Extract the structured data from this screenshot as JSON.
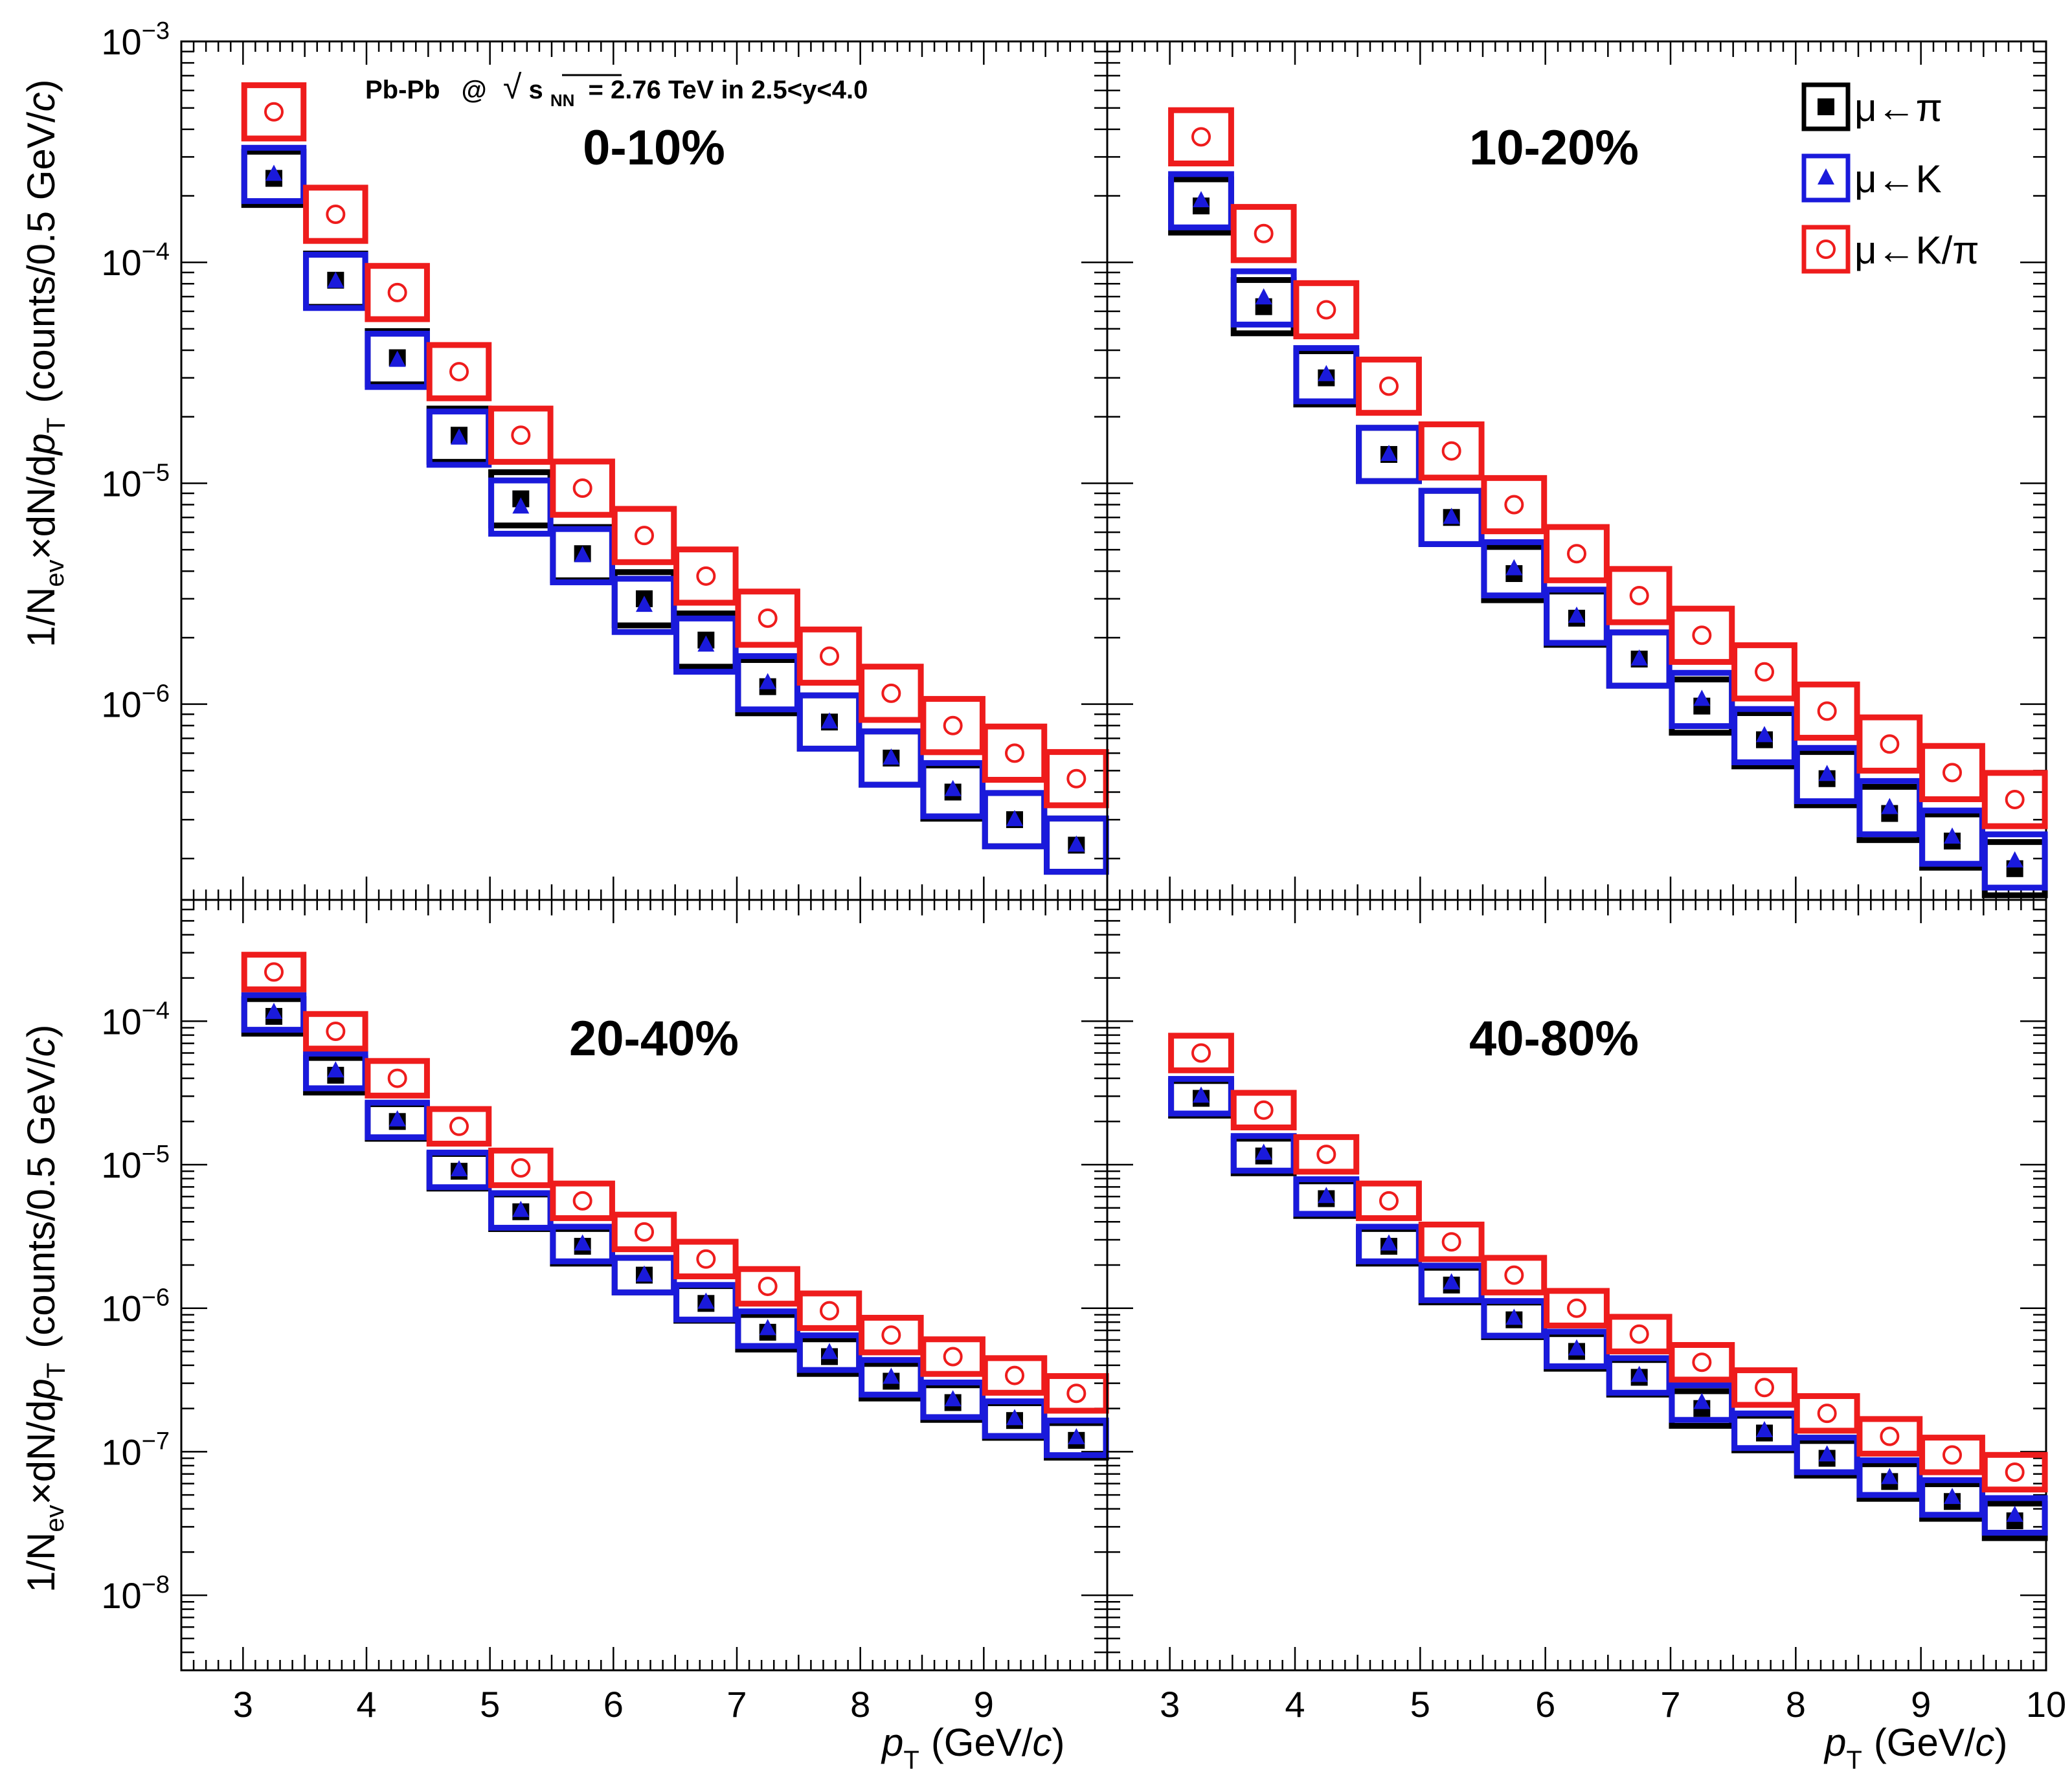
{
  "figure": {
    "annotation": {
      "system": "Pb-Pb",
      "at": "@",
      "sqrt": "√",
      "energy_var": "s",
      "energy_sub": "NN",
      "rest": "= 2.76 TeV in 2.5<y<4.0"
    },
    "x_axis_title": {
      "p": "p",
      "sub": "T",
      "unit_open": "(GeV/",
      "c": "c",
      "unit_close": ")"
    },
    "y_axis_title": {
      "a": "1/N",
      "sub_ev": "ev",
      "b": "×dN/d",
      "p": "p",
      "sub_t": "T",
      "c": "(counts/0.5 GeV/",
      "cit": "c",
      "d": ")"
    },
    "colors": {
      "pi": "#000000",
      "k": "#1a1adb",
      "kpi": "#ee1c1c"
    }
  },
  "legend": [
    {
      "label": "μ←π",
      "series": "pi",
      "marker": "square"
    },
    {
      "label": "μ←K",
      "series": "k",
      "marker": "triangle"
    },
    {
      "label": "μ←K/π",
      "series": "kpi",
      "marker": "open-circle"
    }
  ],
  "chart_data": [
    {
      "type": "scatter",
      "panel": "top-left",
      "title": "0-10%",
      "xlabel": "pT (GeV/c)",
      "ylabel": "1/Nev×dN/dpT (counts/0.5 GeV/c)",
      "yscale": "log",
      "xlim": [
        2.5,
        10
      ],
      "ylim": [
        1.3e-07,
        0.001
      ],
      "x": [
        3.25,
        3.75,
        4.25,
        4.75,
        5.25,
        5.75,
        6.25,
        6.75,
        7.25,
        7.75,
        8.25,
        8.75,
        9.25,
        9.75
      ],
      "series": [
        {
          "name": "μ←π",
          "values": [
            0.00024,
            8.3e-05,
            3.7e-05,
            1.65e-05,
            8.5e-06,
            4.8e-06,
            3e-06,
            1.95e-06,
            1.2e-06,
            8.3e-07,
            5.7e-07,
            4e-07,
            3e-07,
            2.3e-07
          ]
        },
        {
          "name": "μ←K",
          "values": [
            0.00025,
            8.2e-05,
            3.6e-05,
            1.6e-05,
            7.8e-06,
            4.7e-06,
            2.8e-06,
            1.85e-06,
            1.25e-06,
            8.3e-07,
            5.7e-07,
            4.1e-07,
            3e-07,
            2.3e-07
          ]
        },
        {
          "name": "μ←K/π",
          "values": [
            0.00048,
            0.000165,
            7.3e-05,
            3.2e-05,
            1.65e-05,
            9.5e-06,
            5.8e-06,
            3.8e-06,
            2.45e-06,
            1.65e-06,
            1.12e-06,
            8e-07,
            6e-07,
            4.6e-07
          ]
        }
      ]
    },
    {
      "type": "scatter",
      "panel": "top-right",
      "title": "10-20%",
      "xlabel": "pT (GeV/c)",
      "ylabel": "1/Nev×dN/dpT (counts/0.5 GeV/c)",
      "yscale": "log",
      "xlim": [
        2.5,
        10
      ],
      "ylim": [
        1.3e-07,
        0.001
      ],
      "x": [
        3.25,
        3.75,
        4.25,
        4.75,
        5.25,
        5.75,
        6.25,
        6.75,
        7.25,
        7.75,
        8.25,
        8.75,
        9.25,
        9.75
      ],
      "series": [
        {
          "name": "μ←π",
          "values": [
            0.00018,
            6.3e-05,
            3e-05,
            1.35e-05,
            7e-06,
            3.9e-06,
            2.45e-06,
            1.6e-06,
            9.8e-07,
            6.9e-07,
            4.6e-07,
            3.2e-07,
            2.4e-07,
            1.8e-07
          ]
        },
        {
          "name": "μ←K",
          "values": [
            0.00019,
            6.9e-05,
            3.1e-05,
            1.35e-05,
            7e-06,
            4.1e-06,
            2.5e-06,
            1.6e-06,
            1.05e-06,
            7.2e-07,
            4.8e-07,
            3.4e-07,
            2.5e-07,
            1.95e-07
          ]
        },
        {
          "name": "μ←K/π",
          "values": [
            0.00037,
            0.000135,
            6.1e-05,
            2.75e-05,
            1.4e-05,
            8e-06,
            4.8e-06,
            3.1e-06,
            2.05e-06,
            1.4e-06,
            9.3e-07,
            6.6e-07,
            4.9e-07,
            3.7e-07
          ]
        }
      ]
    },
    {
      "type": "scatter",
      "panel": "bottom-left",
      "title": "20-40%",
      "xlabel": "pT (GeV/c)",
      "ylabel": "1/Nev×dN/dpT (counts/0.5 GeV/c)",
      "yscale": "log",
      "xlim": [
        2.5,
        10
      ],
      "ylim": [
        3e-09,
        0.0007
      ],
      "x": [
        3.25,
        3.75,
        4.25,
        4.75,
        5.25,
        5.75,
        6.25,
        6.75,
        7.25,
        7.75,
        8.25,
        8.75,
        9.25,
        9.75
      ],
      "series": [
        {
          "name": "μ←π",
          "values": [
            0.000108,
            4.2e-05,
            2e-05,
            9e-06,
            4.7e-06,
            2.7e-06,
            1.7e-06,
            1.08e-06,
            6.8e-07,
            4.6e-07,
            3.1e-07,
            2.2e-07,
            1.65e-07,
            1.2e-07
          ]
        },
        {
          "name": "μ←K",
          "values": [
            0.000115,
            4.5e-05,
            2.05e-05,
            9.2e-06,
            4.8e-06,
            2.8e-06,
            1.7e-06,
            1.1e-06,
            7.2e-07,
            4.9e-07,
            3.3e-07,
            2.3e-07,
            1.7e-07,
            1.25e-07
          ]
        },
        {
          "name": "μ←K/π",
          "values": [
            0.00022,
            8.5e-05,
            4e-05,
            1.85e-05,
            9.5e-06,
            5.6e-06,
            3.4e-06,
            2.2e-06,
            1.42e-06,
            9.6e-07,
            6.5e-07,
            4.6e-07,
            3.4e-07,
            2.55e-07
          ]
        }
      ]
    },
    {
      "type": "scatter",
      "panel": "bottom-right",
      "title": "40-80%",
      "xlabel": "pT (GeV/c)",
      "ylabel": "1/Nev×dN/dpT (counts/0.5 GeV/c)",
      "yscale": "log",
      "xlim": [
        2.5,
        10
      ],
      "ylim": [
        3e-09,
        0.0007
      ],
      "x": [
        3.25,
        3.75,
        4.25,
        4.75,
        5.25,
        5.75,
        6.25,
        6.75,
        7.25,
        7.75,
        8.25,
        8.75,
        9.25,
        9.75
      ],
      "series": [
        {
          "name": "μ←π",
          "values": [
            2.9e-05,
            1.15e-05,
            5.8e-06,
            2.7e-06,
            1.45e-06,
            8.3e-07,
            5e-07,
            3.3e-07,
            2e-07,
            1.35e-07,
            9e-08,
            6.2e-08,
            4.5e-08,
            3.3e-08
          ]
        },
        {
          "name": "μ←K",
          "values": [
            3e-05,
            1.2e-05,
            6e-06,
            2.8e-06,
            1.5e-06,
            8.5e-07,
            5.2e-07,
            3.4e-07,
            2.2e-07,
            1.4e-07,
            9.5e-08,
            6.6e-08,
            4.8e-08,
            3.6e-08
          ]
        },
        {
          "name": "μ←K/π",
          "values": [
            6e-05,
            2.4e-05,
            1.18e-05,
            5.6e-06,
            2.9e-06,
            1.7e-06,
            1e-06,
            6.6e-07,
            4.2e-07,
            2.8e-07,
            1.85e-07,
            1.28e-07,
            9.5e-08,
            7.2e-08
          ]
        }
      ]
    }
  ]
}
